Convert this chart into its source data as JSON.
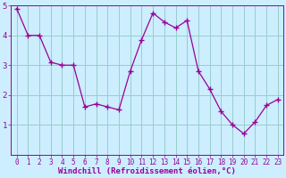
{
  "x": [
    0,
    1,
    2,
    3,
    4,
    5,
    6,
    7,
    8,
    9,
    10,
    11,
    12,
    13,
    14,
    15,
    16,
    17,
    18,
    19,
    20,
    21,
    22,
    23
  ],
  "y": [
    4.9,
    4.0,
    4.0,
    3.1,
    3.0,
    3.0,
    1.6,
    1.7,
    1.6,
    1.5,
    2.8,
    3.85,
    4.75,
    4.45,
    4.25,
    4.5,
    2.8,
    2.2,
    1.45,
    1.0,
    0.7,
    1.1,
    1.65,
    1.85
  ],
  "line_color": "#990099",
  "marker": "+",
  "marker_size": 4,
  "bg_color": "#cceeff",
  "grid_color": "#99cccc",
  "xlabel": "Windchill (Refroidissement éolien,°C)",
  "xlabel_color": "#990099",
  "ylim": [
    0,
    5
  ],
  "xlim": [
    -0.5,
    23.5
  ],
  "yticks": [
    1,
    2,
    3,
    4,
    5
  ],
  "xticks": [
    0,
    1,
    2,
    3,
    4,
    5,
    6,
    7,
    8,
    9,
    10,
    11,
    12,
    13,
    14,
    15,
    16,
    17,
    18,
    19,
    20,
    21,
    22,
    23
  ],
  "tick_fontsize": 5.5,
  "xlabel_fontsize": 6.5,
  "ytick_fontsize": 6.5
}
